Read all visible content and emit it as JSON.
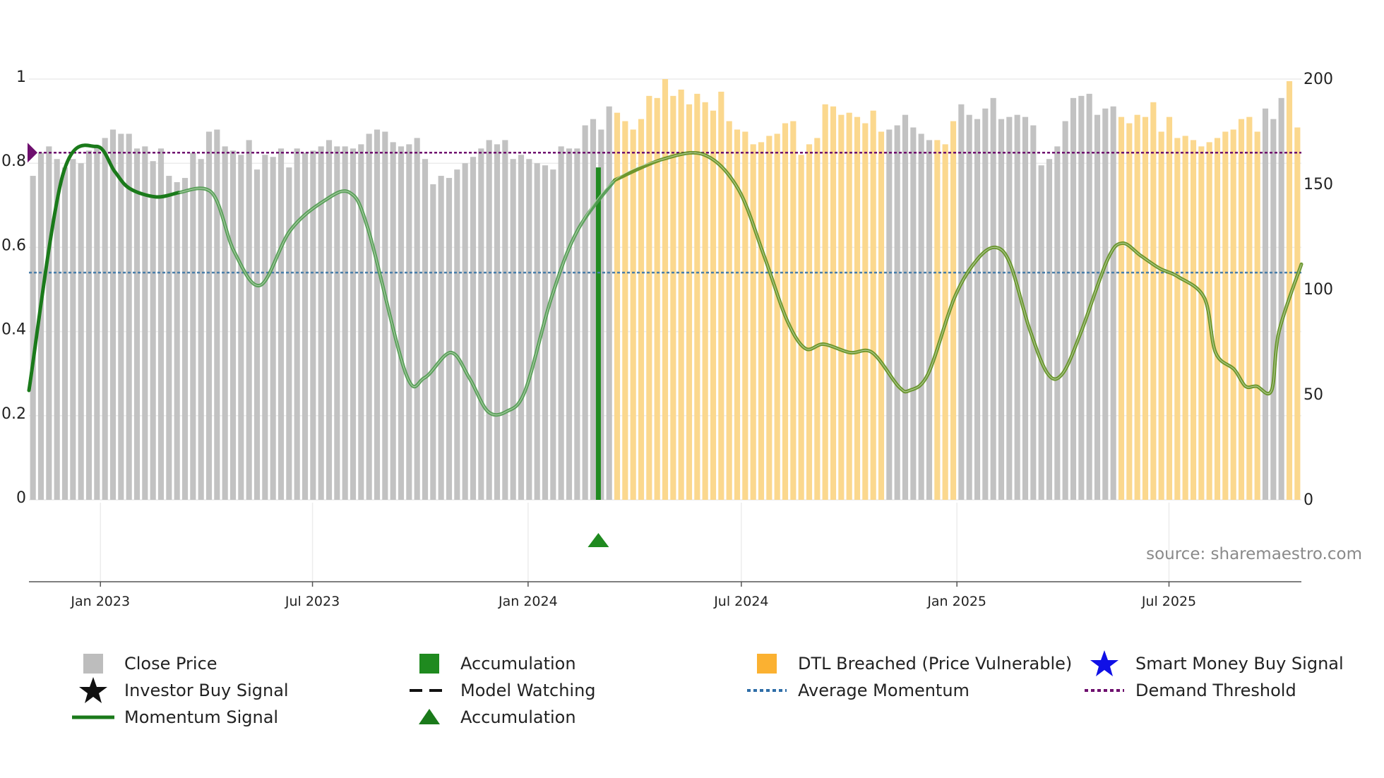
{
  "chart_data": {
    "type": "bar",
    "source": "source: sharemaestro.com",
    "left_axis": {
      "min": 0,
      "max": 1,
      "ticks": [
        "0",
        "0.2",
        "0.4",
        "0.6",
        "0.8",
        "1"
      ]
    },
    "right_axis": {
      "min": 0,
      "max": 200,
      "ticks": [
        "0",
        "50",
        "100",
        "150",
        "200"
      ]
    },
    "x_axis": {
      "start": "2022-11-01",
      "end": "2025-10-22",
      "ticks": [
        {
          "label": "Jan 2023",
          "date": "2023-01-01"
        },
        {
          "label": "Jul 2023",
          "date": "2023-07-01"
        },
        {
          "label": "Jan 2024",
          "date": "2024-01-01"
        },
        {
          "label": "Jul 2024",
          "date": "2024-07-01"
        },
        {
          "label": "Jan 2025",
          "date": "2025-01-01"
        },
        {
          "label": "Jul 2025",
          "date": "2025-07-01"
        }
      ]
    },
    "close_price": [
      154,
      165,
      168,
      162,
      158,
      162,
      160,
      166,
      168,
      172,
      176,
      174,
      174,
      167,
      168,
      161,
      167,
      154,
      151,
      153,
      165,
      162,
      175,
      176,
      168,
      166,
      164,
      171,
      157,
      164,
      163,
      167,
      158,
      167,
      165,
      166,
      168,
      171,
      168,
      168,
      167,
      169,
      174,
      176,
      175,
      170,
      168,
      169,
      172,
      162,
      150,
      154,
      153,
      157,
      160,
      163,
      167,
      171,
      169,
      171,
      162,
      164,
      162,
      160,
      159,
      157,
      168,
      167,
      167,
      178,
      181,
      176,
      187,
      184,
      180,
      176,
      181,
      192,
      191,
      200,
      192,
      195,
      188,
      193,
      189,
      185,
      194,
      180,
      176,
      175,
      169,
      170,
      173,
      174,
      179,
      180,
      164,
      169,
      172,
      188,
      187,
      183,
      184,
      182,
      179,
      185,
      175,
      176,
      178,
      183,
      177,
      174,
      171,
      171,
      169,
      180,
      188,
      183,
      181,
      186,
      191,
      181,
      182,
      183,
      182,
      178,
      159,
      162,
      168,
      180,
      191,
      192,
      193,
      183,
      186,
      187,
      182,
      179,
      183,
      182,
      189,
      175,
      182,
      172,
      173,
      171,
      168,
      170,
      172,
      175,
      176,
      181,
      182,
      175,
      186,
      181,
      191,
      199,
      177
    ],
    "bar_state": "gggggggggggggggggggggggggggggggggggggggggggggggggggggggggggggggggggggggggooooooooooooooooooooooooooooooooooggggggoooggggggggggggggggggggoooooooooooooooooogggoooooooooooooogggggggggoooooooooooooooooo",
    "momentum": [
      [
        0,
        0.26
      ],
      [
        9,
        0.77
      ],
      [
        18,
        0.84
      ],
      [
        23,
        0.78
      ],
      [
        27,
        0.74
      ],
      [
        34,
        0.72
      ],
      [
        40,
        0.73
      ],
      [
        49,
        0.73
      ],
      [
        55,
        0.59
      ],
      [
        62,
        0.51
      ],
      [
        70,
        0.64
      ],
      [
        79,
        0.71
      ],
      [
        86,
        0.73
      ],
      [
        91,
        0.64
      ],
      [
        101,
        0.3
      ],
      [
        106,
        0.29
      ],
      [
        113,
        0.35
      ],
      [
        118,
        0.29
      ],
      [
        123,
        0.21
      ],
      [
        128,
        0.21
      ],
      [
        133,
        0.26
      ],
      [
        140,
        0.48
      ],
      [
        147,
        0.64
      ],
      [
        157,
        0.76
      ],
      [
        170,
        0.81
      ],
      [
        181,
        0.82
      ],
      [
        190,
        0.74
      ],
      [
        197,
        0.58
      ],
      [
        203,
        0.43
      ],
      [
        208,
        0.36
      ],
      [
        213,
        0.37
      ],
      [
        220,
        0.35
      ],
      [
        226,
        0.35
      ],
      [
        233,
        0.27
      ],
      [
        236,
        0.26
      ],
      [
        241,
        0.3
      ],
      [
        248,
        0.48
      ],
      [
        254,
        0.57
      ],
      [
        259,
        0.6
      ],
      [
        263,
        0.56
      ],
      [
        268,
        0.41
      ],
      [
        273,
        0.3
      ],
      [
        277,
        0.3
      ],
      [
        282,
        0.4
      ],
      [
        289,
        0.57
      ],
      [
        293,
        0.61
      ],
      [
        298,
        0.58
      ],
      [
        303,
        0.55
      ],
      [
        308,
        0.53
      ],
      [
        315,
        0.48
      ],
      [
        318,
        0.35
      ],
      [
        323,
        0.31
      ],
      [
        326,
        0.27
      ],
      [
        329,
        0.27
      ],
      [
        333,
        0.26
      ],
      [
        335,
        0.4
      ],
      [
        341,
        0.56
      ]
    ],
    "momentum_len": 341,
    "momentum_dark_until": 40,
    "demand_threshold": 0.825,
    "average_momentum": 0.54,
    "accumulation_date": "2024-03-01",
    "colors": {
      "close_price": "#c2c2c2",
      "dtl_breached": "#fbd88e",
      "accumulation": "#1f8a1f",
      "momentum_dark": "#1a7a1a",
      "momentum_light": "#4f9a4f",
      "momentum_late": "#5f8f1f",
      "average_momentum": "#4a7ea8",
      "demand_threshold": "#6e0f6e",
      "grid": "#ececec",
      "axis": "#555555"
    },
    "legend": [
      {
        "label": "Close Price",
        "symbol": "grey-square"
      },
      {
        "label": "Accumulation",
        "symbol": "green-square"
      },
      {
        "label": "DTL Breached (Price Vulnerable)",
        "symbol": "orange-square"
      },
      {
        "label": "Smart Money Buy Signal",
        "symbol": "blue-star"
      },
      {
        "label": "Investor Buy Signal",
        "symbol": "black-star"
      },
      {
        "label": "Model Watching",
        "symbol": "black-dashed-line"
      },
      {
        "label": "Average Momentum",
        "symbol": "blue-dotted-line"
      },
      {
        "label": "Demand Threshold",
        "symbol": "purple-dotted-line"
      },
      {
        "label": "Momentum Signal",
        "symbol": "green-line"
      },
      {
        "label": "Accumulation",
        "symbol": "green-triangle"
      }
    ]
  }
}
